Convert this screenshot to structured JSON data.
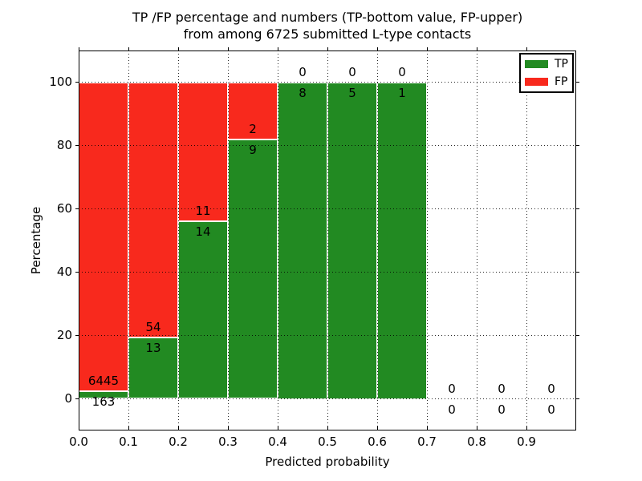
{
  "chart_data": {
    "type": "bar",
    "stacked": true,
    "title_lines": [
      "TP /FP percentage and numbers (TP-bottom value, FP-upper)",
      "from among 6725 submitted L-type contacts"
    ],
    "title": "TP /FP percentage and numbers (TP-bottom value, FP-upper)\nfrom among 6725 submitted L-type contacts",
    "xlabel": "Predicted probability",
    "ylabel": "Percentage",
    "total_submitted": 6725,
    "bin_edges": [
      0.0,
      0.1,
      0.2,
      0.3,
      0.4,
      0.5,
      0.6,
      0.7,
      0.8,
      0.9,
      1.0
    ],
    "categories": [
      "0.0-0.1",
      "0.1-0.2",
      "0.2-0.3",
      "0.3-0.4",
      "0.4-0.5",
      "0.5-0.6",
      "0.6-0.7",
      "0.7-0.8",
      "0.8-0.9",
      "0.9-1.0"
    ],
    "series": [
      {
        "name": "TP",
        "color": "#228a22",
        "counts": [
          163,
          13,
          14,
          9,
          8,
          5,
          1,
          0,
          0,
          0
        ]
      },
      {
        "name": "FP",
        "color": "#f8291d",
        "counts": [
          6445,
          54,
          11,
          2,
          0,
          0,
          0,
          0,
          0,
          0
        ]
      }
    ],
    "tp_percent_by_bin": [
      2.47,
      19.4,
      56.0,
      81.82,
      100.0,
      100.0,
      100.0,
      null,
      null,
      null
    ],
    "x_tick_values": [
      0.0,
      0.1,
      0.2,
      0.3,
      0.4,
      0.5,
      0.6,
      0.7,
      0.8,
      0.9
    ],
    "x_tick_labels": [
      "0.0",
      "0.1",
      "0.2",
      "0.3",
      "0.4",
      "0.5",
      "0.6",
      "0.7",
      "0.8",
      "0.9"
    ],
    "y_tick_values": [
      0,
      20,
      40,
      60,
      80,
      100
    ],
    "y_tick_labels": [
      "0",
      "20",
      "40",
      "60",
      "80",
      "100"
    ],
    "xlim": [
      0.0,
      1.0
    ],
    "ylim": [
      -10,
      110
    ],
    "grid": true,
    "legend": {
      "position": "upper right",
      "entries": [
        {
          "label": "TP",
          "color": "#228a22"
        },
        {
          "label": "FP",
          "color": "#f8291d"
        }
      ]
    }
  }
}
